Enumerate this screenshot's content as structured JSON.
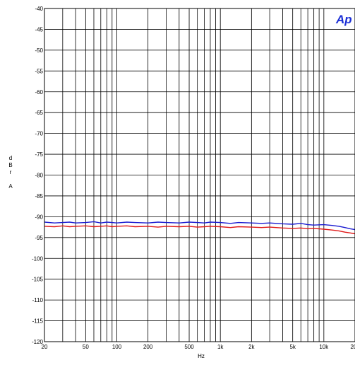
{
  "chart_data": {
    "type": "line",
    "title": "",
    "xlabel": "Hz",
    "ylabel_letters": [
      "d",
      "B",
      "r",
      "",
      "A"
    ],
    "x_scale": "log",
    "xlim": [
      20,
      20000
    ],
    "ylim": [
      -120,
      -40
    ],
    "x_ticks": [
      {
        "value": 20,
        "label": "20"
      },
      {
        "value": 50,
        "label": "50"
      },
      {
        "value": 100,
        "label": "100"
      },
      {
        "value": 200,
        "label": "200"
      },
      {
        "value": 500,
        "label": "500"
      },
      {
        "value": 1000,
        "label": "1k"
      },
      {
        "value": 2000,
        "label": "2k"
      },
      {
        "value": 5000,
        "label": "5k"
      },
      {
        "value": 10000,
        "label": "10k"
      },
      {
        "value": 20000,
        "label": "20k"
      }
    ],
    "y_ticks": [
      -40,
      -45,
      -50,
      -55,
      -60,
      -65,
      -70,
      -75,
      -80,
      -85,
      -90,
      -95,
      -100,
      -105,
      -110,
      -115,
      -120
    ],
    "grid": true,
    "logo_text": "Ap",
    "series": [
      {
        "color": "#1a1ad0",
        "x": [
          20,
          25,
          30,
          35,
          40,
          50,
          60,
          70,
          80,
          90,
          100,
          125,
          150,
          200,
          250,
          300,
          400,
          500,
          600,
          700,
          800,
          1000,
          1250,
          1500,
          2000,
          2500,
          3000,
          4000,
          5000,
          6000,
          7000,
          8000,
          10000,
          12000,
          14000,
          16000,
          18000,
          20000
        ],
        "y": [
          -91.3,
          -91.5,
          -91.4,
          -91.3,
          -91.5,
          -91.4,
          -91.2,
          -91.5,
          -91.3,
          -91.4,
          -91.5,
          -91.3,
          -91.4,
          -91.5,
          -91.3,
          -91.4,
          -91.5,
          -91.3,
          -91.4,
          -91.5,
          -91.3,
          -91.4,
          -91.6,
          -91.4,
          -91.5,
          -91.6,
          -91.5,
          -91.7,
          -91.8,
          -91.6,
          -91.9,
          -92.0,
          -91.9,
          -92.1,
          -92.3,
          -92.6,
          -92.9,
          -93.1
        ]
      },
      {
        "color": "#e01818",
        "x": [
          20,
          25,
          30,
          35,
          40,
          50,
          60,
          70,
          80,
          90,
          100,
          125,
          150,
          200,
          250,
          300,
          400,
          500,
          600,
          700,
          800,
          1000,
          1250,
          1500,
          2000,
          2500,
          3000,
          4000,
          5000,
          6000,
          7000,
          8000,
          10000,
          12000,
          14000,
          16000,
          18000,
          20000
        ],
        "y": [
          -92.3,
          -92.4,
          -92.2,
          -92.4,
          -92.3,
          -92.2,
          -92.4,
          -92.3,
          -92.2,
          -92.4,
          -92.3,
          -92.2,
          -92.4,
          -92.3,
          -92.5,
          -92.3,
          -92.4,
          -92.3,
          -92.5,
          -92.4,
          -92.3,
          -92.4,
          -92.6,
          -92.4,
          -92.5,
          -92.6,
          -92.5,
          -92.7,
          -92.8,
          -92.7,
          -92.9,
          -92.8,
          -93.0,
          -93.2,
          -93.4,
          -93.7,
          -93.9,
          -94.1
        ]
      }
    ]
  }
}
